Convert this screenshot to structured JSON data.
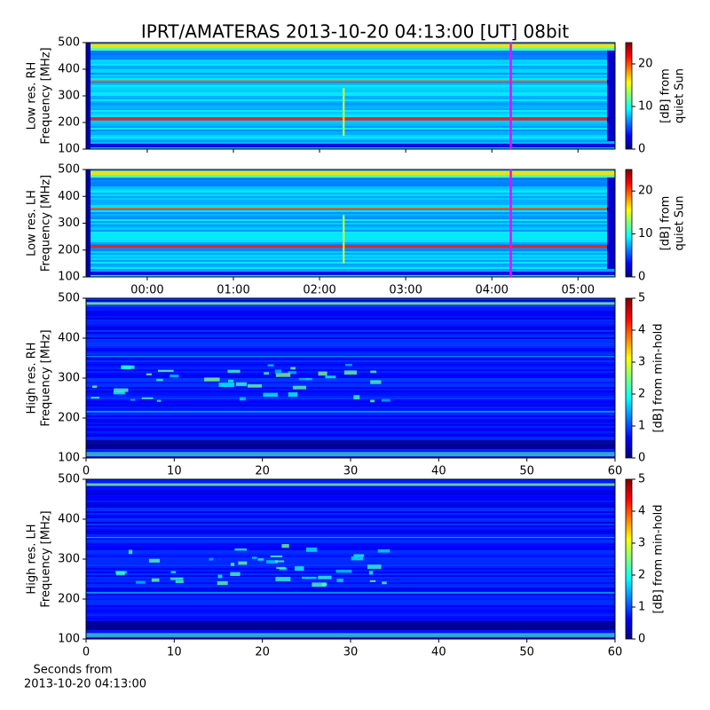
{
  "title": "IPRT/AMATERAS 2013-10-20 04:13:00 [UT]   08bit",
  "chart_data": [
    {
      "type": "spectrogram",
      "ylabel": [
        "Low res. RH",
        "Frequency [MHz]"
      ],
      "ylim": [
        100,
        500
      ],
      "yticks": [
        100,
        200,
        300,
        400,
        500
      ],
      "xlim": [
        -0.71,
        5.43
      ],
      "xticks": [
        0,
        1,
        2,
        3,
        4,
        5
      ],
      "colormap": "jet",
      "marker_x": 4.22,
      "marker_color": "#ff00ff",
      "colorbar": {
        "label": [
          "[dB] from",
          "quiet Sun"
        ],
        "lim": [
          0,
          25
        ],
        "ticks": [
          0,
          10,
          20
        ]
      }
    },
    {
      "type": "spectrogram",
      "ylabel": [
        "Low res. LH",
        "Frequency [MHz]"
      ],
      "ylim": [
        100,
        500
      ],
      "yticks": [
        100,
        200,
        300,
        400,
        500
      ],
      "xlim": [
        -0.71,
        5.43
      ],
      "xticks": [
        {
          "value": 0,
          "label": "00:00"
        },
        {
          "value": 1,
          "label": "01:00"
        },
        {
          "value": 2,
          "label": "02:00"
        },
        {
          "value": 3,
          "label": "03:00"
        },
        {
          "value": 4,
          "label": "04:00"
        },
        {
          "value": 5,
          "label": "05:00"
        }
      ],
      "colormap": "jet",
      "marker_x": 4.22,
      "marker_color": "#ff00ff",
      "colorbar": {
        "label": [
          "[dB] from",
          "quiet Sun"
        ],
        "lim": [
          0,
          25
        ],
        "ticks": [
          0,
          10,
          20
        ]
      }
    },
    {
      "type": "spectrogram",
      "ylabel": [
        "High res. RH",
        "Frequency [MHz]"
      ],
      "ylim": [
        100,
        500
      ],
      "yticks": [
        100,
        200,
        300,
        400,
        500
      ],
      "xlim": [
        0,
        60
      ],
      "xticks": [
        0,
        10,
        20,
        30,
        40,
        50,
        60
      ],
      "colormap": "jet",
      "colorbar": {
        "label": [
          "[dB] from min-hold"
        ],
        "lim": [
          0,
          5
        ],
        "ticks": [
          0,
          1,
          2,
          3,
          4,
          5
        ]
      }
    },
    {
      "type": "spectrogram",
      "ylabel": [
        "High res. LH",
        "Frequency [MHz]"
      ],
      "ylim": [
        100,
        500
      ],
      "yticks": [
        100,
        200,
        300,
        400,
        500
      ],
      "xlim": [
        0,
        60
      ],
      "xticks": [
        0,
        10,
        20,
        30,
        40,
        50,
        60
      ],
      "xlabel": [
        "Seconds from",
        "2013-10-20 04:13:00"
      ],
      "colormap": "jet",
      "colorbar": {
        "label": [
          "[dB] from min-hold"
        ],
        "lim": [
          0,
          5
        ],
        "ticks": [
          0,
          1,
          2,
          3,
          4,
          5
        ]
      }
    }
  ]
}
